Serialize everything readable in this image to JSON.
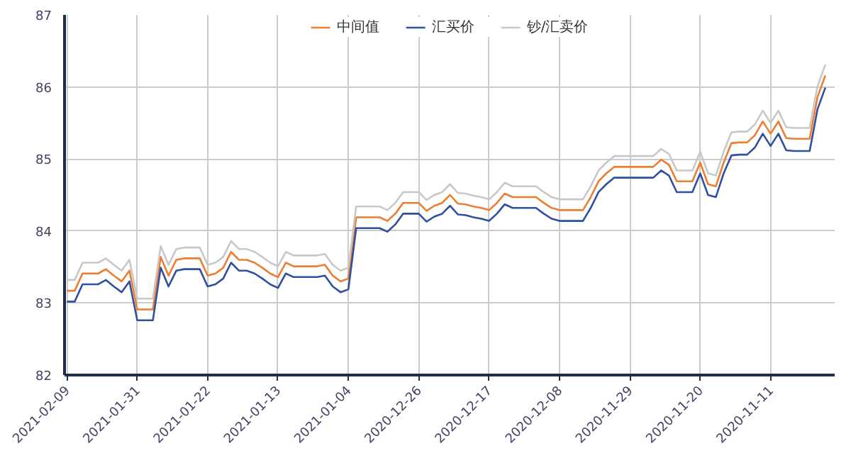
{
  "chart_data": {
    "type": "line",
    "categories": [
      "2021-02-09",
      null,
      null,
      null,
      null,
      null,
      null,
      null,
      null,
      "2021-01-31",
      null,
      null,
      null,
      null,
      null,
      null,
      null,
      null,
      "2021-01-22",
      null,
      null,
      null,
      null,
      null,
      null,
      null,
      null,
      "2021-01-13",
      null,
      null,
      null,
      null,
      null,
      null,
      null,
      null,
      "2021-01-04",
      null,
      null,
      null,
      null,
      null,
      null,
      null,
      null,
      "2020-12-26",
      null,
      null,
      null,
      null,
      null,
      null,
      null,
      null,
      "2020-12-17",
      null,
      null,
      null,
      null,
      null,
      null,
      null,
      null,
      "2020-12-08",
      null,
      null,
      null,
      null,
      null,
      null,
      null,
      null,
      "2020-11-29",
      null,
      null,
      null,
      null,
      null,
      null,
      null,
      null,
      "2020-11-20",
      null,
      null,
      null,
      null,
      null,
      null,
      null,
      null,
      "2020-11-11",
      null,
      null,
      null,
      null,
      null,
      null,
      null
    ],
    "series": [
      {
        "name": "中间值",
        "color": "#ed7d31",
        "values": [
          83.17,
          83.17,
          83.41,
          83.41,
          83.41,
          83.47,
          83.38,
          83.3,
          83.45,
          82.91,
          82.91,
          82.91,
          83.64,
          83.38,
          83.6,
          83.62,
          83.62,
          83.62,
          83.38,
          83.41,
          83.49,
          83.71,
          83.6,
          83.6,
          83.56,
          83.49,
          83.41,
          83.36,
          83.56,
          83.51,
          83.51,
          83.51,
          83.51,
          83.53,
          83.38,
          83.3,
          83.34,
          84.19,
          84.19,
          84.19,
          84.19,
          84.14,
          84.24,
          84.39,
          84.39,
          84.39,
          84.28,
          84.35,
          84.39,
          84.5,
          84.38,
          84.37,
          84.34,
          84.32,
          84.29,
          84.39,
          84.52,
          84.47,
          84.47,
          84.47,
          84.47,
          84.39,
          84.32,
          84.29,
          84.29,
          84.29,
          84.29,
          84.47,
          84.69,
          84.8,
          84.89,
          84.89,
          84.89,
          84.89,
          84.89,
          84.89,
          84.99,
          84.92,
          84.69,
          84.69,
          84.69,
          84.95,
          84.65,
          84.62,
          84.95,
          85.22,
          85.23,
          85.23,
          85.33,
          85.52,
          85.35,
          85.52,
          85.29,
          85.28,
          85.28,
          85.28,
          85.86,
          86.16
        ]
      },
      {
        "name": "汇买价",
        "color": "#2f4fa0",
        "values": [
          83.02,
          83.02,
          83.26,
          83.26,
          83.26,
          83.32,
          83.23,
          83.15,
          83.3,
          82.76,
          82.76,
          82.76,
          83.49,
          83.23,
          83.45,
          83.47,
          83.47,
          83.47,
          83.23,
          83.26,
          83.34,
          83.56,
          83.45,
          83.45,
          83.41,
          83.34,
          83.26,
          83.21,
          83.41,
          83.36,
          83.36,
          83.36,
          83.36,
          83.38,
          83.23,
          83.15,
          83.19,
          84.04,
          84.04,
          84.04,
          84.04,
          83.99,
          84.09,
          84.24,
          84.24,
          84.24,
          84.13,
          84.2,
          84.24,
          84.35,
          84.23,
          84.22,
          84.19,
          84.17,
          84.14,
          84.24,
          84.37,
          84.32,
          84.32,
          84.32,
          84.32,
          84.24,
          84.17,
          84.14,
          84.14,
          84.14,
          84.14,
          84.32,
          84.54,
          84.65,
          84.74,
          84.74,
          84.74,
          84.74,
          84.74,
          84.74,
          84.84,
          84.77,
          84.54,
          84.54,
          84.54,
          84.8,
          84.5,
          84.47,
          84.8,
          85.05,
          85.06,
          85.06,
          85.16,
          85.35,
          85.18,
          85.35,
          85.12,
          85.11,
          85.11,
          85.11,
          85.69,
          85.99
        ]
      },
      {
        "name": "钞/汇卖价",
        "color": "#c8c8c8",
        "values": [
          83.32,
          83.32,
          83.56,
          83.56,
          83.56,
          83.62,
          83.53,
          83.45,
          83.6,
          83.06,
          83.06,
          83.06,
          83.79,
          83.53,
          83.75,
          83.77,
          83.77,
          83.77,
          83.53,
          83.56,
          83.64,
          83.86,
          83.75,
          83.75,
          83.71,
          83.64,
          83.56,
          83.51,
          83.71,
          83.66,
          83.66,
          83.66,
          83.66,
          83.68,
          83.53,
          83.45,
          83.49,
          84.34,
          84.34,
          84.34,
          84.34,
          84.29,
          84.39,
          84.54,
          84.54,
          84.54,
          84.43,
          84.5,
          84.54,
          84.65,
          84.53,
          84.52,
          84.49,
          84.47,
          84.44,
          84.54,
          84.67,
          84.62,
          84.62,
          84.62,
          84.62,
          84.54,
          84.47,
          84.44,
          84.44,
          84.44,
          84.44,
          84.62,
          84.84,
          84.95,
          85.04,
          85.04,
          85.04,
          85.04,
          85.04,
          85.04,
          85.14,
          85.07,
          84.84,
          84.84,
          84.84,
          85.1,
          84.8,
          84.77,
          85.1,
          85.37,
          85.38,
          85.38,
          85.48,
          85.67,
          85.5,
          85.67,
          85.44,
          85.43,
          85.43,
          85.43,
          86.01,
          86.31
        ]
      }
    ],
    "ylim": [
      82,
      87
    ],
    "yticks": [
      82,
      83,
      84,
      85,
      86,
      87
    ],
    "grid": true,
    "legend": "top",
    "marker": "none",
    "line_style": "solid"
  }
}
